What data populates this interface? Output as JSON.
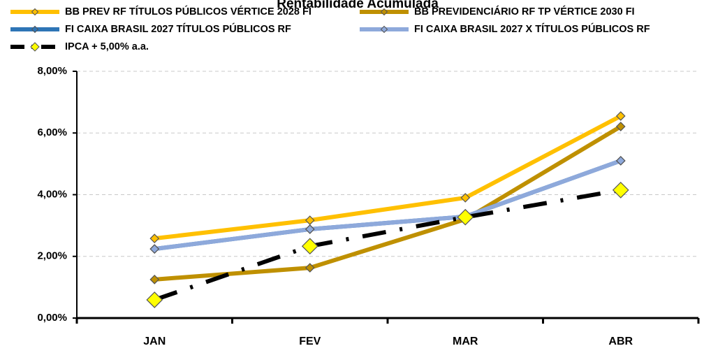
{
  "chart_data": {
    "type": "line",
    "title": "Rentabilidade Acumulada",
    "categories": [
      "JAN",
      "FEV",
      "MAR",
      "ABR"
    ],
    "series": [
      {
        "name": "BB PREV RF TÍTULOS PÚBLICOS VÉRTICE 2028 FI",
        "color": "#FFC000",
        "values": [
          2.58,
          3.17,
          3.9,
          6.55
        ]
      },
      {
        "name": "BB PREVIDENCIÁRIO RF TP VÉRTICE 2030 FI",
        "color": "#BF9000",
        "values": [
          1.25,
          1.63,
          3.2,
          6.21
        ]
      },
      {
        "name": "FI CAIXA BRASIL 2027 TÍTULOS PÚBLICOS RF",
        "color": "#2E75B6",
        "values": [
          2.24,
          2.88,
          3.29,
          5.1
        ]
      },
      {
        "name": "FI CAIXA BRASIL 2027 X TÍTULOS PÚBLICOS RF",
        "color": "#8EA9DB",
        "values": [
          2.24,
          2.88,
          3.29,
          5.1
        ]
      },
      {
        "name": "IPCA + 5,00% a.a.",
        "color": "#000000",
        "values": [
          0.59,
          2.33,
          3.27,
          4.15
        ]
      }
    ],
    "ylim": [
      0,
      8
    ],
    "yticks": [
      {
        "value": 0,
        "label": "0,00%"
      },
      {
        "value": 2,
        "label": "2,00%"
      },
      {
        "value": 4,
        "label": "4,00%"
      },
      {
        "value": 6,
        "label": "6,00%"
      },
      {
        "value": 8,
        "label": "8,00%"
      }
    ],
    "grid": true
  }
}
